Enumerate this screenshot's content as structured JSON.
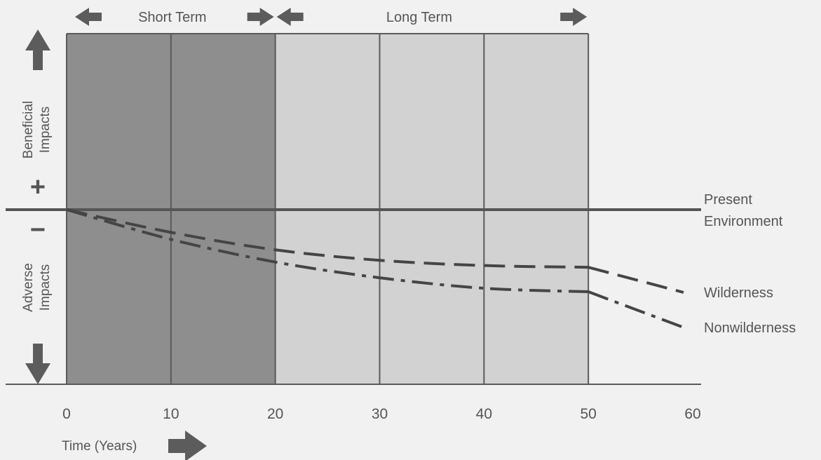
{
  "chart_data": {
    "type": "line",
    "title": "",
    "xlabel": "Time (Years)",
    "ylabel_positive": "Beneficial Impacts",
    "ylabel_negative": "Adverse Impacts",
    "plus_sign": "+",
    "minus_sign": "−",
    "xlim": [
      0,
      60
    ],
    "x_ticks": [
      "0",
      "10",
      "20",
      "30",
      "40",
      "50",
      "60"
    ],
    "baseline_label_line1": "Present",
    "baseline_label_line2": "Environment",
    "periods": [
      {
        "label": "Short Term",
        "start": 0,
        "end": 20,
        "shade": "#8e8e8e"
      },
      {
        "label": "Long Term",
        "start": 20,
        "end": 50,
        "shade": "#d2d2d2"
      }
    ],
    "series": [
      {
        "name": "Wilderness",
        "line_style": "dashed",
        "x": [
          0,
          10,
          20,
          30,
          40,
          50
        ],
        "y": [
          0,
          -0.13,
          -0.23,
          -0.29,
          -0.32,
          -0.33
        ]
      },
      {
        "name": "Nonwilderness",
        "line_style": "dash-dot",
        "x": [
          0,
          10,
          20,
          30,
          40,
          50
        ],
        "y": [
          0,
          -0.17,
          -0.3,
          -0.39,
          -0.45,
          -0.47
        ]
      }
    ],
    "colors": {
      "background": "#f1f1f1",
      "grid": "#5a5a5a",
      "line": "#454545",
      "arrow": "#5c5c5c"
    }
  }
}
